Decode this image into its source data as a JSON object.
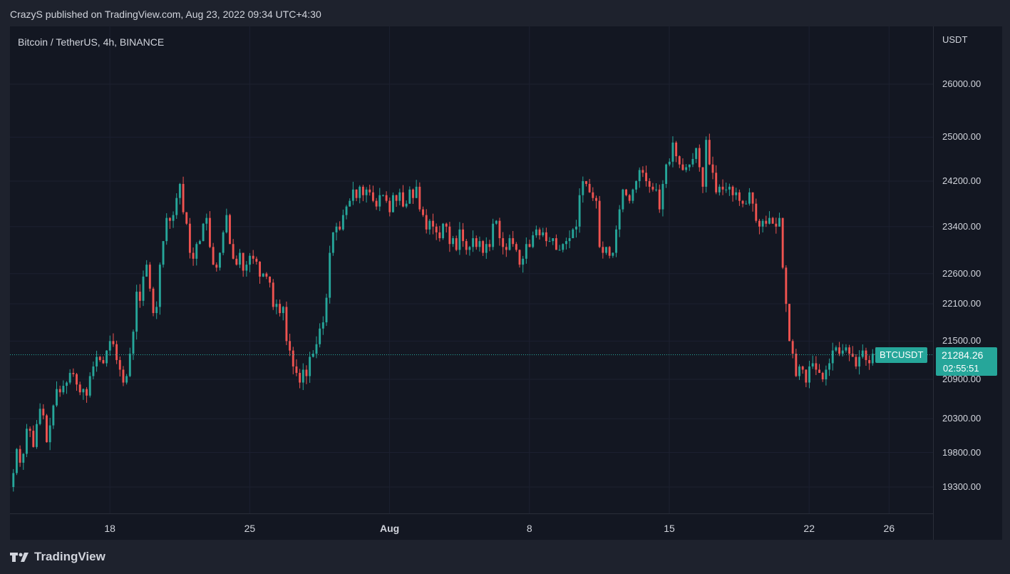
{
  "header": {
    "published": "CrazyS published on TradingView.com, Aug 23, 2022 09:34 UTC+4:30"
  },
  "brand": {
    "name": "TradingView",
    "icon": "tradingview-logo-icon"
  },
  "colors": {
    "up": "#26a69a",
    "down": "#ef5350",
    "background": "#131722",
    "grid": "#1c2030"
  },
  "chart_data": {
    "type": "candlestick",
    "title": "Bitcoin / TetherUS, 4h, BINANCE",
    "currency": "USDT",
    "y_ticks": [
      "26000.00",
      "25000.00",
      "24200.00",
      "23400.00",
      "22600.00",
      "22100.00",
      "21500.00",
      "20900.00",
      "20300.00",
      "19800.00",
      "19300.00"
    ],
    "x_ticks": [
      {
        "label": "18",
        "day": 18,
        "bold": false
      },
      {
        "label": "25",
        "day": 25,
        "bold": false
      },
      {
        "label": "Aug",
        "day": 32,
        "bold": true
      },
      {
        "label": "8",
        "day": 39,
        "bold": false
      },
      {
        "label": "15",
        "day": 46,
        "bold": false
      },
      {
        "label": "22",
        "day": 53,
        "bold": false
      },
      {
        "label": "26",
        "day": 57,
        "bold": false
      }
    ],
    "x_range_days": [
      13.0,
      59.2
    ],
    "y_scale": "log",
    "first_candle_day": 13.17,
    "candle_step_days": 0.1667,
    "last_price": {
      "symbol": "BTCUSDT",
      "price": "21284.26",
      "countdown": "02:55:51",
      "value": 21284.26
    },
    "closes": [
      19500,
      19850,
      19650,
      19780,
      20150,
      20120,
      19880,
      20220,
      20450,
      20350,
      19950,
      20200,
      20500,
      20750,
      20700,
      20800,
      20850,
      21000,
      20980,
      20820,
      20700,
      20750,
      20650,
      20950,
      21100,
      21250,
      21200,
      21150,
      21350,
      21500,
      21450,
      21200,
      21050,
      20850,
      20950,
      21300,
      21650,
      22300,
      22150,
      22550,
      22750,
      22350,
      21950,
      22050,
      22750,
      23150,
      23550,
      23500,
      23600,
      23900,
      24150,
      23650,
      23450,
      22950,
      22850,
      23100,
      23150,
      23450,
      23550,
      23050,
      22750,
      22700,
      22950,
      23300,
      23600,
      23100,
      22850,
      22750,
      22950,
      22650,
      22750,
      22900,
      22850,
      22800,
      22550,
      22600,
      22550,
      22450,
      22050,
      22100,
      21950,
      22050,
      21500,
      21350,
      21100,
      21000,
      20850,
      21050,
      20950,
      21250,
      21300,
      21450,
      21700,
      21800,
      22200,
      22950,
      23300,
      23400,
      23350,
      23600,
      23750,
      23850,
      24050,
      23900,
      24100,
      23950,
      24050,
      24000,
      23850,
      23750,
      23950,
      23950,
      23850,
      23650,
      23950,
      23850,
      24000,
      23750,
      23800,
      24050,
      23900,
      24100,
      23700,
      23600,
      23350,
      23500,
      23400,
      23300,
      23200,
      23450,
      23400,
      23100,
      23200,
      23000,
      23350,
      23150,
      23000,
      23050,
      23200,
      23050,
      23150,
      22950,
      23100,
      23050,
      23450,
      23500,
      23200,
      23050,
      23000,
      23200,
      23100,
      23000,
      22750,
      22850,
      23100,
      23050,
      23250,
      23350,
      23250,
      23300,
      23150,
      23150,
      23200,
      23000,
      23000,
      23100,
      23150,
      23200,
      23350,
      23400,
      23950,
      24200,
      24150,
      24000,
      23900,
      23850,
      23050,
      22950,
      23050,
      22900,
      22950,
      23350,
      23700,
      24050,
      23950,
      23850,
      24050,
      24200,
      24400,
      24350,
      24200,
      24100,
      24050,
      24050,
      23700,
      24150,
      24500,
      24550,
      24900,
      24650,
      24500,
      24400,
      24450,
      24500,
      24600,
      24800,
      24450,
      24100,
      24950,
      24500,
      24350,
      24000,
      24100,
      24050,
      24050,
      24100,
      23950,
      24000,
      23850,
      23800,
      23800,
      24000,
      23800,
      23500,
      23400,
      23500,
      23450,
      23550,
      23450,
      23400,
      23550,
      22700,
      22100,
      21500,
      21300,
      20950,
      21100,
      21050,
      20850,
      21100,
      21150,
      21050,
      21000,
      20900,
      21050,
      21150,
      21350,
      21400,
      21300,
      21350,
      21400,
      21300,
      21250,
      21100,
      21250,
      21350,
      21200,
      21150,
      21300,
      21284
    ]
  }
}
